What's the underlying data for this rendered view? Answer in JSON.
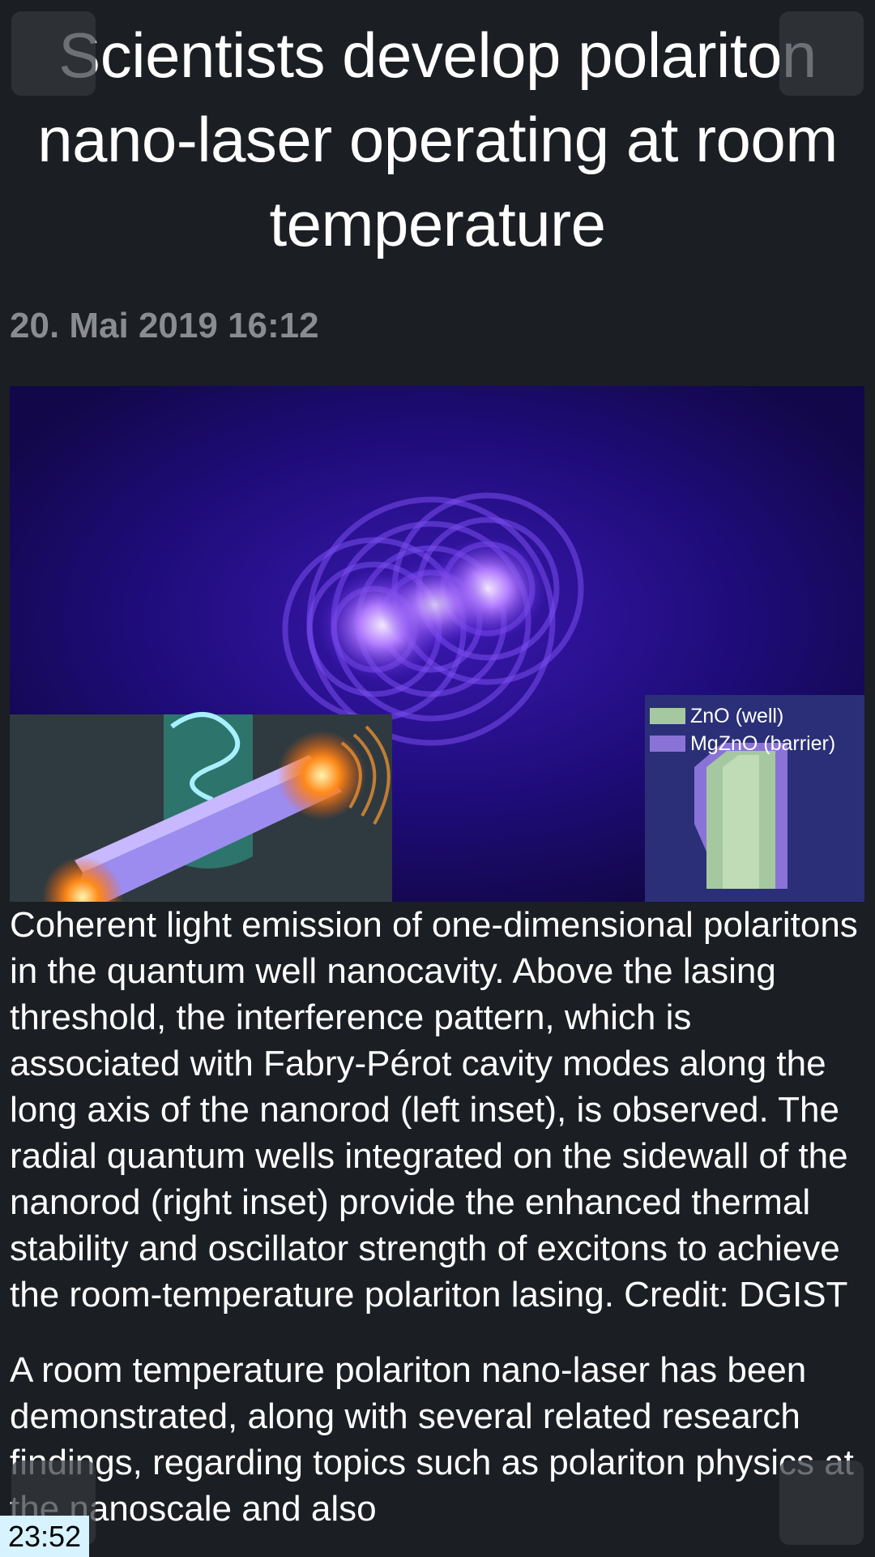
{
  "article": {
    "title": "Scientists develop polariton nano-laser operating at room temperature",
    "date": "20. Mai 2019 16:12",
    "figure": {
      "legend": [
        {
          "label": "ZnO (well)",
          "color": "#a6c8a0"
        },
        {
          "label": "MgZnO (barrier)",
          "color": "#8a73d6"
        }
      ]
    },
    "caption": "Coherent light emission of one-dimensional polaritons in the quantum well nanocavity. Above the lasing threshold, the interference pattern, which is associated with Fabry-Pérot cavity modes along the long axis of the nanorod (left inset), is observed. The radial quantum wells integrated on the sidewall of the nanorod (right inset) provide the enhanced thermal stability and oscillator strength of excitons to achieve the room-temperature polariton lasing. Credit: DGIST",
    "paragraph_1": "A room temperature polariton nano-laser has been demonstrated, along with several related research findings, regarding topics such as polariton physics at the nanoscale and also"
  },
  "status": {
    "time": "23:52"
  },
  "colors": {
    "background": "#1b1e23",
    "date_text": "#8a8c90",
    "clock_bg": "#d6f3ff"
  }
}
